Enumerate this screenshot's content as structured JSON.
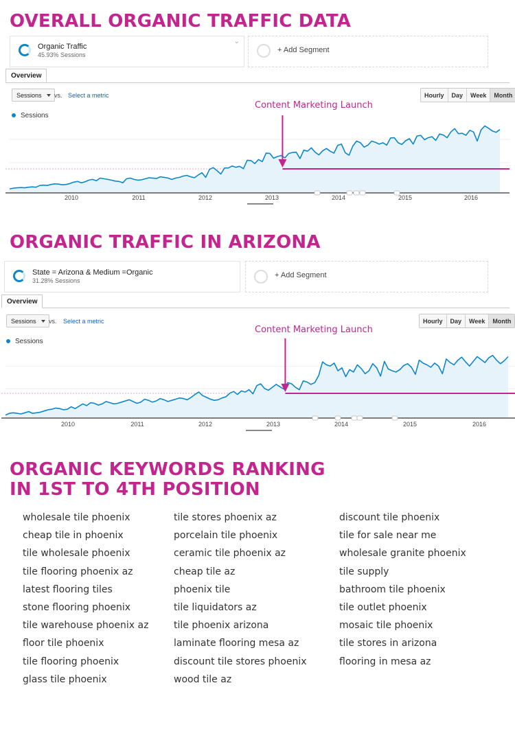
{
  "headings": {
    "overall": "OVERALL ORGANIC TRAFFIC DATA",
    "arizona": "ORGANIC TRAFFIC IN ARIZONA",
    "keywords_line1": "ORGANIC KEYWORDS RANKING",
    "keywords_line2": "IN 1ST TO 4TH POSITION"
  },
  "panels": [
    {
      "segment_title": "Organic Traffic",
      "segment_sub": "45.93% Sessions",
      "add_segment": "+ Add Segment",
      "tab": "Overview",
      "metric_dropdown": "Sessions",
      "vs": "vs.",
      "select_metric": "Select a metric",
      "granularity": [
        "Hourly",
        "Day",
        "Week",
        "Month"
      ],
      "active_granularity": "Month",
      "legend": "Sessions",
      "annotation": "Content Marketing Launch"
    },
    {
      "segment_title": "State = Arizona & Medium =Organic",
      "segment_sub": "31.28% Sessions",
      "add_segment": "+ Add Segment",
      "tab": "Overview",
      "metric_dropdown": "Sessions",
      "vs": "vs.",
      "select_metric": "Select a metric",
      "granularity": [
        "Hourly",
        "Day",
        "Week",
        "Month"
      ],
      "active_granularity": "Month",
      "legend": "Sessions",
      "annotation": "Content Marketing Launch"
    }
  ],
  "chart_data": [
    {
      "type": "area",
      "x_tick_labels": [
        "2010",
        "2011",
        "2012",
        "2013",
        "2014",
        "2015",
        "2016"
      ],
      "series": [
        {
          "name": "Sessions",
          "values": [
            12,
            14,
            15,
            16,
            15,
            17,
            18,
            17,
            22,
            23,
            22,
            25,
            27,
            26,
            24,
            25,
            28,
            32,
            34,
            30,
            33,
            38,
            40,
            36,
            44,
            42,
            40,
            38,
            35,
            34,
            30,
            42,
            44,
            40,
            38,
            39,
            42,
            45,
            44,
            43,
            48,
            46,
            44,
            40,
            44,
            46,
            50,
            52,
            48,
            45,
            53,
            60,
            46,
            70,
            75,
            66,
            56,
            74,
            74,
            80,
            76,
            79,
            72,
            97,
            96,
            87,
            99,
            93,
            118,
            117,
            103,
            108,
            111,
            104,
            117,
            120,
            121,
            102,
            127,
            124,
            134,
            121,
            113,
            125,
            132,
            124,
            118,
            141,
            145,
            119,
            112,
            139,
            154,
            149,
            136,
            142,
            154,
            150,
            145,
            149,
            142,
            163,
            164,
            149,
            144,
            155,
            161,
            145,
            169,
            171,
            158,
            164,
            167,
            156,
            175,
            172,
            164,
            181,
            191,
            176,
            177,
            171,
            186,
            181,
            154,
            187,
            199,
            192,
            184,
            180,
            188
          ]
        }
      ],
      "reference_line": "Content Marketing Launch"
    },
    {
      "type": "area",
      "x_tick_labels": [
        "2010",
        "2011",
        "2012",
        "2013",
        "2014",
        "2015",
        "2016"
      ],
      "series": [
        {
          "name": "Sessions",
          "values": [
            5,
            8,
            9,
            8,
            7,
            9,
            11,
            8,
            9,
            10,
            12,
            14,
            15,
            17,
            16,
            14,
            15,
            19,
            16,
            20,
            24,
            21,
            26,
            25,
            22,
            24,
            28,
            26,
            24,
            25,
            27,
            29,
            31,
            28,
            25,
            27,
            32,
            30,
            27,
            29,
            33,
            31,
            28,
            30,
            32,
            34,
            33,
            31,
            35,
            40,
            44,
            38,
            35,
            32,
            30,
            31,
            34,
            36,
            42,
            45,
            40,
            46,
            44,
            48,
            41,
            55,
            58,
            50,
            47,
            52,
            57,
            53,
            49,
            60,
            58,
            52,
            48,
            63,
            61,
            57,
            60,
            72,
            95,
            90,
            88,
            93,
            80,
            85,
            70,
            82,
            78,
            90,
            84,
            75,
            80,
            92,
            85,
            71,
            96,
            83,
            80,
            78,
            82,
            89,
            92,
            86,
            74,
            98,
            93,
            90,
            86,
            93,
            88,
            75,
            100,
            94,
            90,
            98,
            103,
            95,
            88,
            96,
            104,
            99,
            94,
            102,
            106,
            98,
            92,
            97,
            104
          ]
        }
      ],
      "reference_line": "Content Marketing Launch"
    }
  ],
  "keywords": [
    [
      "wholesale tile phoenix",
      "cheap tile in phoenix",
      "tile wholesale phoenix",
      "tile flooring phoenix az",
      "latest flooring tiles",
      "stone flooring phoenix",
      "tile warehouse phoenix az",
      "floor tile phoenix",
      "tile flooring phoenix",
      "glass tile phoenix"
    ],
    [
      "tile stores phoenix az",
      "porcelain tile phoenix",
      "ceramic tile phoenix az",
      "cheap tile az",
      "phoenix tile",
      "tile liquidators az",
      "tile phoenix arizona",
      "laminate flooring mesa az",
      "discount tile stores phoenix",
      "wood tile az"
    ],
    [
      "discount tile phoenix",
      "tile for sale near me",
      "wholesale granite phoenix",
      "tile supply",
      "bathroom tile phoenix",
      "tile outlet phoenix",
      "mosaic tile phoenix",
      "tile stores in arizona",
      "flooring in mesa az"
    ]
  ]
}
